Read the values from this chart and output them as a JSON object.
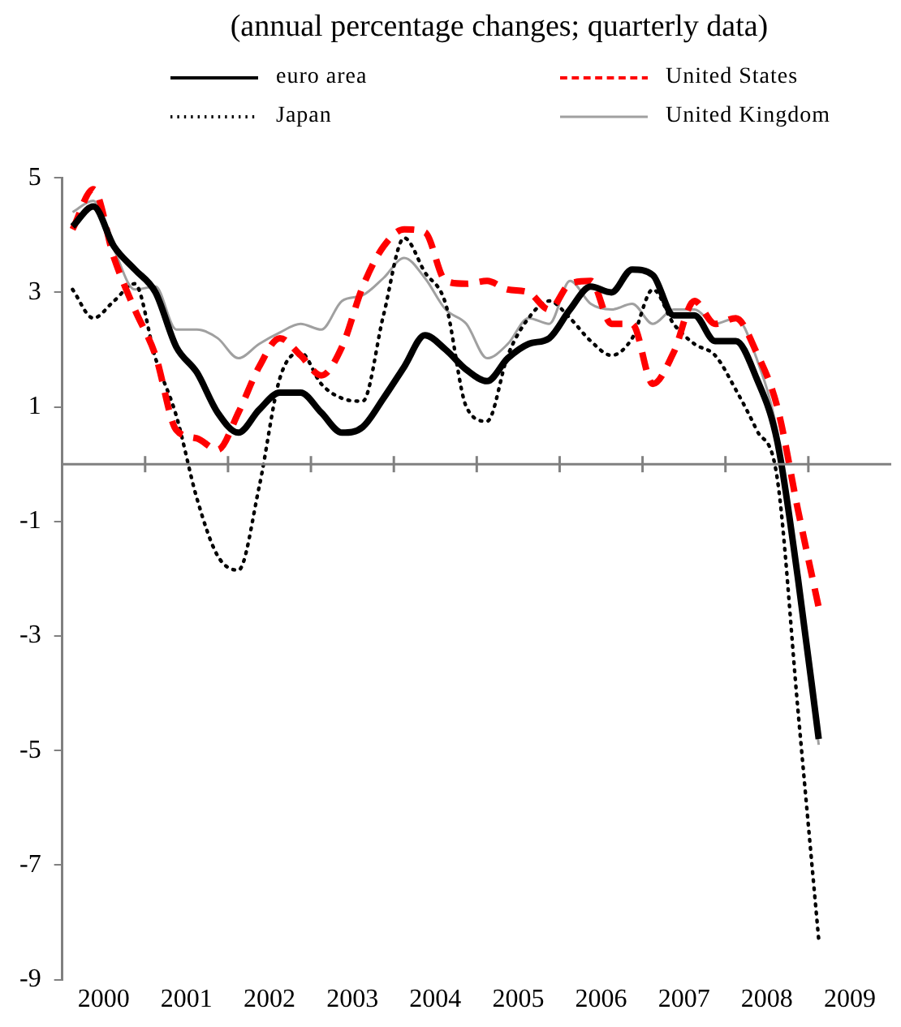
{
  "chart_data": {
    "type": "line",
    "title": "(annual percentage changes; quarterly data)",
    "x": [
      2000.125,
      2000.375,
      2000.625,
      2000.875,
      2001.125,
      2001.375,
      2001.625,
      2001.875,
      2002.125,
      2002.375,
      2002.625,
      2002.875,
      2003.125,
      2003.375,
      2003.625,
      2003.875,
      2004.125,
      2004.375,
      2004.625,
      2004.875,
      2005.125,
      2005.375,
      2005.625,
      2005.875,
      2006.125,
      2006.375,
      2006.625,
      2006.875,
      2007.125,
      2007.375,
      2007.625,
      2007.875,
      2008.125,
      2008.375,
      2008.625,
      2008.875,
      2009.125
    ],
    "series": [
      {
        "name": "euro area",
        "color": "#000000",
        "line_style": "solid",
        "values": [
          4.15,
          4.5,
          3.8,
          3.4,
          3.0,
          2.05,
          1.6,
          0.9,
          0.55,
          0.95,
          1.25,
          1.25,
          0.9,
          0.55,
          0.65,
          1.15,
          1.7,
          2.25,
          2.0,
          1.65,
          1.45,
          1.85,
          2.1,
          2.2,
          2.7,
          3.1,
          3.0,
          3.4,
          3.3,
          2.6,
          2.6,
          2.15,
          2.15,
          1.5,
          0.4,
          -2.0,
          -4.8
        ]
      },
      {
        "name": "United States",
        "color": "#ff0000",
        "line_style": "dashed",
        "values": [
          4.1,
          4.8,
          3.6,
          2.7,
          1.9,
          0.6,
          0.45,
          0.25,
          0.9,
          1.7,
          2.2,
          1.9,
          1.55,
          2.05,
          3.1,
          3.8,
          4.1,
          4.05,
          3.2,
          3.15,
          3.2,
          3.05,
          3.0,
          2.7,
          3.15,
          3.2,
          2.45,
          2.45,
          1.4,
          1.95,
          2.85,
          2.45,
          2.55,
          1.95,
          1.0,
          -0.8,
          -2.5
        ]
      },
      {
        "name": "Japan",
        "color": "#000000",
        "line_style": "dotted",
        "values": [
          3.05,
          2.55,
          2.85,
          3.15,
          1.85,
          0.85,
          -0.6,
          -1.6,
          -1.85,
          -0.4,
          1.5,
          1.95,
          1.4,
          1.15,
          1.1,
          2.6,
          3.95,
          3.35,
          2.8,
          1.0,
          0.75,
          1.9,
          2.55,
          2.85,
          2.55,
          2.15,
          1.9,
          2.2,
          3.05,
          2.45,
          2.1,
          1.9,
          1.3,
          0.6,
          -0.25,
          -4.3,
          -8.3
        ]
      },
      {
        "name": "United Kingdom",
        "color": "#a0a0a0",
        "line_style": "solid",
        "values": [
          4.4,
          4.6,
          3.75,
          3.05,
          3.1,
          2.35,
          2.35,
          2.2,
          1.85,
          2.1,
          2.3,
          2.45,
          2.35,
          2.85,
          2.95,
          3.25,
          3.6,
          3.25,
          2.7,
          2.45,
          1.85,
          2.1,
          2.55,
          2.45,
          3.2,
          2.8,
          2.7,
          2.8,
          2.45,
          2.7,
          2.7,
          2.45,
          2.55,
          1.85,
          0.55,
          -2.0,
          -4.9
        ]
      }
    ],
    "xlim": [
      2000,
      2010
    ],
    "xticks": [
      {
        "value": 2000.5,
        "label": "2000"
      },
      {
        "value": 2001,
        "label": null
      },
      {
        "value": 2001.5,
        "label": "2001"
      },
      {
        "value": 2002,
        "label": null
      },
      {
        "value": 2002.5,
        "label": "2002"
      },
      {
        "value": 2003,
        "label": null
      },
      {
        "value": 2003.5,
        "label": "2003"
      },
      {
        "value": 2004,
        "label": null
      },
      {
        "value": 2004.5,
        "label": "2004"
      },
      {
        "value": 2005,
        "label": null
      },
      {
        "value": 2005.5,
        "label": "2005"
      },
      {
        "value": 2006,
        "label": null
      },
      {
        "value": 2006.5,
        "label": "2006"
      },
      {
        "value": 2007,
        "label": null
      },
      {
        "value": 2007.5,
        "label": "2007"
      },
      {
        "value": 2008,
        "label": null
      },
      {
        "value": 2008.5,
        "label": "2008"
      },
      {
        "value": 2009,
        "label": null
      },
      {
        "value": 2009.5,
        "label": "2009"
      }
    ],
    "ylim": [
      -9,
      5
    ],
    "yticks": [
      -9,
      -7,
      -5,
      -3,
      -1,
      1,
      3,
      5
    ],
    "legend": "top",
    "marker": "none"
  }
}
